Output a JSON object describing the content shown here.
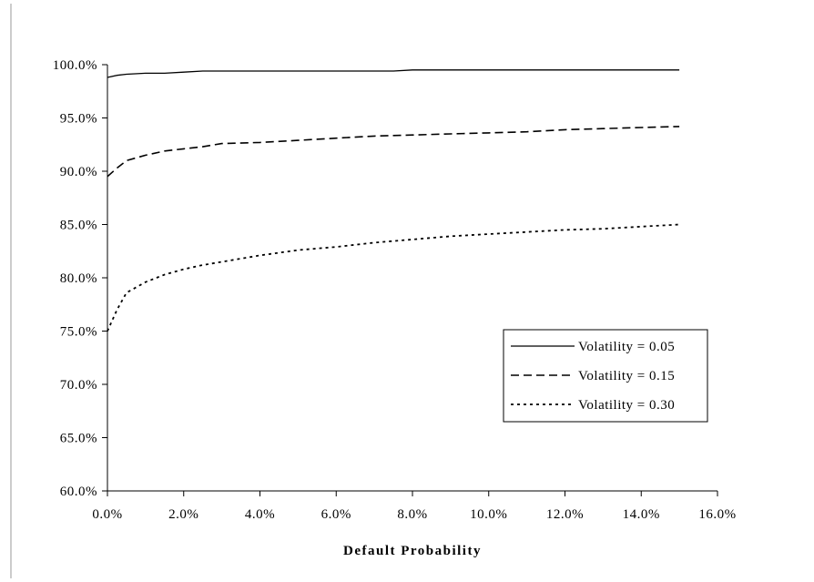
{
  "chart_data": {
    "type": "line",
    "title": "",
    "xlabel": "Default Probability",
    "ylabel": "",
    "xlim": [
      0.0,
      0.16
    ],
    "ylim": [
      0.6,
      1.0
    ],
    "x_ticks": [
      0.0,
      0.02,
      0.04,
      0.06,
      0.08,
      0.1,
      0.12,
      0.14,
      0.16
    ],
    "x_tick_labels": [
      "0.0%",
      "2.0%",
      "4.0%",
      "6.0%",
      "8.0%",
      "10.0%",
      "12.0%",
      "14.0%",
      "16.0%"
    ],
    "y_ticks": [
      0.6,
      0.65,
      0.7,
      0.75,
      0.8,
      0.85,
      0.9,
      0.95,
      1.0
    ],
    "y_tick_labels": [
      "60.0%",
      "65.0%",
      "70.0%",
      "75.0%",
      "80.0%",
      "85.0%",
      "90.0%",
      "95.0%",
      "100.0%"
    ],
    "grid": false,
    "legend_position": "right",
    "series": [
      {
        "name": "Volatility = 0.05",
        "dash": "solid",
        "x": [
          0.0,
          0.0025,
          0.005,
          0.01,
          0.015,
          0.02,
          0.025,
          0.03,
          0.04,
          0.05,
          0.06,
          0.07,
          0.075,
          0.08,
          0.09,
          0.1,
          0.11,
          0.12,
          0.13,
          0.14,
          0.15
        ],
        "y": [
          0.988,
          0.99,
          0.991,
          0.992,
          0.992,
          0.993,
          0.994,
          0.994,
          0.994,
          0.994,
          0.994,
          0.994,
          0.994,
          0.995,
          0.995,
          0.995,
          0.995,
          0.995,
          0.995,
          0.995,
          0.995
        ]
      },
      {
        "name": "Volatility = 0.15",
        "dash": "dashed",
        "x": [
          0.0,
          0.0025,
          0.005,
          0.01,
          0.015,
          0.02,
          0.025,
          0.03,
          0.04,
          0.05,
          0.06,
          0.07,
          0.08,
          0.09,
          0.1,
          0.11,
          0.12,
          0.13,
          0.14,
          0.15
        ],
        "y": [
          0.895,
          0.903,
          0.91,
          0.915,
          0.919,
          0.921,
          0.923,
          0.926,
          0.927,
          0.929,
          0.931,
          0.933,
          0.934,
          0.935,
          0.936,
          0.937,
          0.939,
          0.94,
          0.941,
          0.942
        ]
      },
      {
        "name": "Volatility = 0.30",
        "dash": "dotted",
        "x": [
          0.0,
          0.0025,
          0.005,
          0.01,
          0.015,
          0.02,
          0.025,
          0.03,
          0.04,
          0.05,
          0.06,
          0.07,
          0.08,
          0.09,
          0.1,
          0.11,
          0.12,
          0.13,
          0.14,
          0.15
        ],
        "y": [
          0.75,
          0.77,
          0.786,
          0.796,
          0.803,
          0.808,
          0.812,
          0.815,
          0.821,
          0.826,
          0.829,
          0.833,
          0.836,
          0.839,
          0.841,
          0.843,
          0.845,
          0.846,
          0.848,
          0.85
        ]
      }
    ]
  }
}
